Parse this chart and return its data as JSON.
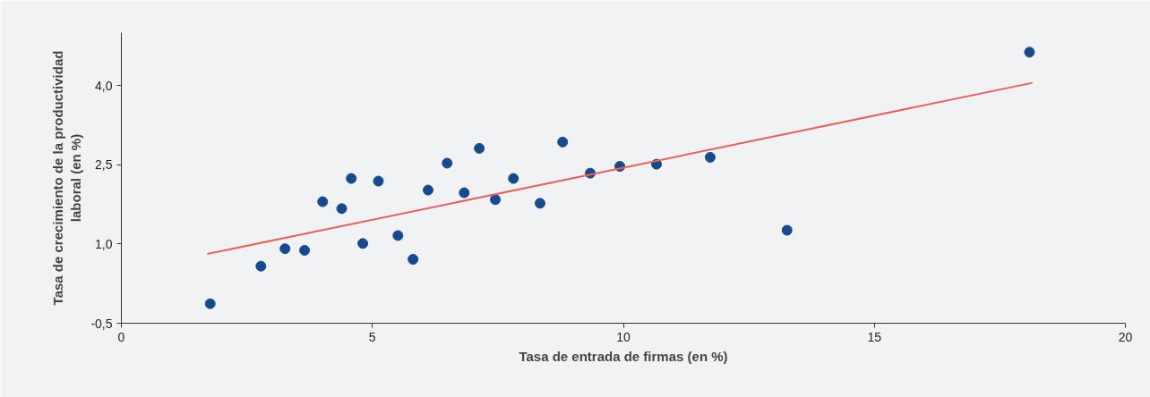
{
  "chart_data": {
    "type": "scatter",
    "xlabel": "Tasa de entrada de firmas (en %)",
    "ylabel": "Tasa de crecimiento de la productividad laboral (en %)",
    "xlim": [
      0,
      20
    ],
    "xticks": [
      0,
      5,
      10,
      15,
      20
    ],
    "ylim": [
      -0.5,
      5.0
    ],
    "yticks": [
      {
        "value": -0.5,
        "label": "-0,5"
      },
      {
        "value": 1.0,
        "label": "1,0"
      },
      {
        "value": 2.5,
        "label": "2,5"
      },
      {
        "value": 4.0,
        "label": "4,0"
      }
    ],
    "grid": false,
    "series": [
      {
        "marker": "circle",
        "color": "#154a8c",
        "x": [
          1.77,
          2.78,
          3.26,
          3.65,
          4.01,
          4.39,
          4.58,
          4.81,
          5.12,
          5.51,
          5.81,
          6.11,
          6.49,
          6.83,
          7.13,
          7.45,
          7.81,
          8.34,
          8.79,
          9.34,
          9.93,
          10.66,
          11.73,
          13.26,
          18.09
        ],
        "values": [
          -0.13,
          0.58,
          0.91,
          0.88,
          1.8,
          1.67,
          2.24,
          1.01,
          2.19,
          1.16,
          0.71,
          2.02,
          2.53,
          1.97,
          2.81,
          1.84,
          2.24,
          1.77,
          2.93,
          2.34,
          2.47,
          2.51,
          2.64,
          1.26,
          4.63
        ]
      },
      {
        "type": "line",
        "color": "#e8615c",
        "x": [
          1.71,
          18.15
        ],
        "values": [
          0.81,
          4.05
        ]
      }
    ]
  }
}
